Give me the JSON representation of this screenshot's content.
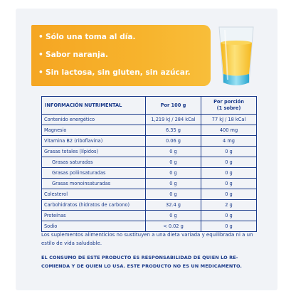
{
  "banner": {
    "bullets": [
      "Sólo una toma al día.",
      "Sabor naranja.",
      "Sin lactosa, sin gluten, sin azúcar."
    ]
  },
  "table": {
    "headers": {
      "name": "INFORMACIÓN NUTRIMENTAL",
      "per100": "Por 100 g",
      "per_portion_line1": "Por porción",
      "per_portion_line2": "(1 sobre)"
    },
    "rows": [
      {
        "label": "Contenido energético",
        "per100": "1,219 kJ / 284 kCal",
        "portion": "77 kJ / 18 kCal",
        "indent": false
      },
      {
        "label": "Magnesio",
        "per100": "6.35 g",
        "portion": "400 mg",
        "indent": false
      },
      {
        "label": "Vitamina B2 (riboflavina)",
        "per100": "0.06 g",
        "portion": "4 mg",
        "indent": false
      },
      {
        "label": "Grasas totales (lípidos)",
        "per100": "0 g",
        "portion": "0 g",
        "indent": false
      },
      {
        "label": "Grasas saturadas",
        "per100": "0 g",
        "portion": "0 g",
        "indent": true
      },
      {
        "label": "Grasas poliinsaturadas",
        "per100": "0 g",
        "portion": "0 g",
        "indent": true
      },
      {
        "label": "Grasas monoinsaturadas",
        "per100": "0 g",
        "portion": "0 g",
        "indent": true
      },
      {
        "label": "Colesterol",
        "per100": "0 g",
        "portion": "0 g",
        "indent": false
      },
      {
        "label": "Carbohidratos (hidratos de carbono)",
        "per100": "32.4 g",
        "portion": "2 g",
        "indent": false
      },
      {
        "label": "Proteínas",
        "per100": "0 g",
        "portion": "0 g",
        "indent": false
      },
      {
        "label": "Sodio",
        "per100": "< 0.02 g",
        "portion": "0 g",
        "indent": false
      }
    ]
  },
  "note": "Los suplementos alimenticios no sustituyen a una dieta variada y equilibrada ni a un estilo de vida saludable.",
  "warning": "EL CONSUMO DE ESTE PRODUCTO ES RESPONSABILIDAD DE QUIEN LO RE-COMIENDA Y DE QUIEN LO USA. ESTE PRODUCTO NO ES UN MEDICAMENTO.",
  "colors": {
    "banner": "#f5a623",
    "text_blue": "#1a3a8a",
    "panel": "#f1f3f7",
    "juice": "#f7c531",
    "glass_base": "#4bbfe0"
  },
  "icons": {
    "glass": "orange-juice-glass-icon"
  }
}
